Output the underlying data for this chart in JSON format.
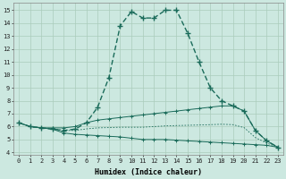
{
  "xlabel": "Humidex (Indice chaleur)",
  "bg_color": "#cce8e0",
  "grid_color": "#aaccbb",
  "line_color": "#1a6b5a",
  "xlim": [
    -0.5,
    23.5
  ],
  "ylim": [
    3.8,
    15.6
  ],
  "yticks": [
    4,
    5,
    6,
    7,
    8,
    9,
    10,
    11,
    12,
    13,
    14,
    15
  ],
  "xticks": [
    0,
    1,
    2,
    3,
    4,
    5,
    6,
    7,
    8,
    9,
    10,
    11,
    12,
    13,
    14,
    15,
    16,
    17,
    18,
    19,
    20,
    21,
    22,
    23
  ],
  "series": {
    "main": {
      "x": [
        0,
        1,
        2,
        3,
        4,
        5,
        6,
        7,
        8,
        9,
        10,
        11,
        12,
        13,
        14,
        15,
        16,
        17,
        18,
        19,
        20,
        21,
        22,
        23
      ],
      "y": [
        6.3,
        6.0,
        5.9,
        5.8,
        5.7,
        5.8,
        6.3,
        7.5,
        9.8,
        13.8,
        14.9,
        14.4,
        14.4,
        15.0,
        15.0,
        13.2,
        11.0,
        9.0,
        8.0,
        7.6,
        7.2,
        5.7,
        4.9,
        4.4
      ]
    },
    "upper": {
      "x": [
        0,
        1,
        2,
        3,
        4,
        5,
        6,
        7,
        8,
        9,
        10,
        11,
        12,
        13,
        14,
        15,
        16,
        17,
        18,
        19,
        20,
        21,
        22,
        23
      ],
      "y": [
        6.3,
        6.0,
        5.9,
        5.9,
        5.9,
        6.0,
        6.3,
        6.5,
        6.6,
        6.7,
        6.8,
        6.9,
        7.0,
        7.1,
        7.2,
        7.3,
        7.4,
        7.5,
        7.6,
        7.6,
        7.2,
        5.7,
        4.9,
        4.4
      ]
    },
    "lower": {
      "x": [
        0,
        1,
        2,
        3,
        4,
        5,
        6,
        7,
        8,
        9,
        10,
        11,
        12,
        13,
        14,
        15,
        16,
        17,
        18,
        19,
        20,
        21,
        22,
        23
      ],
      "y": [
        6.3,
        6.0,
        5.9,
        5.8,
        5.5,
        5.4,
        5.35,
        5.3,
        5.25,
        5.2,
        5.1,
        5.0,
        5.0,
        5.0,
        4.95,
        4.9,
        4.85,
        4.8,
        4.75,
        4.7,
        4.65,
        4.6,
        4.55,
        4.4
      ]
    },
    "dotted": {
      "x": [
        0,
        1,
        2,
        3,
        4,
        5,
        6,
        7,
        8,
        9,
        10,
        11,
        12,
        13,
        14,
        15,
        16,
        17,
        18,
        19,
        20,
        21,
        22,
        23
      ],
      "y": [
        6.3,
        6.0,
        5.9,
        5.85,
        5.7,
        5.7,
        5.82,
        5.9,
        5.92,
        5.95,
        5.95,
        5.95,
        6.0,
        6.05,
        6.08,
        6.1,
        6.12,
        6.15,
        6.18,
        6.15,
        5.92,
        5.15,
        4.72,
        4.4
      ]
    }
  }
}
